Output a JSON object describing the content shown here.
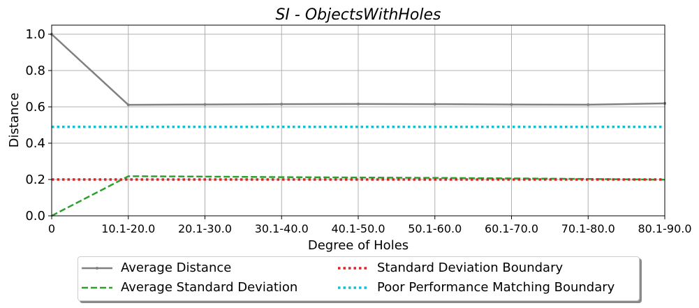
{
  "chart_data": {
    "type": "line",
    "title": "SI - ObjectsWithHoles",
    "xlabel": "Degree of Holes",
    "ylabel": "Distance",
    "categories": [
      "0",
      "10.1-20.0",
      "20.1-30.0",
      "30.1-40.0",
      "40.1-50.0",
      "50.1-60.0",
      "60.1-70.0",
      "70.1-80.0",
      "80.1-90.0"
    ],
    "ylim": [
      0,
      1.05
    ],
    "yticks": [
      "0.0",
      "0.2",
      "0.4",
      "0.6",
      "0.8",
      "1.0"
    ],
    "grid": true,
    "legend_position": "bottom-center",
    "series": [
      {
        "name": "Average Distance",
        "style": "solid-marker",
        "color": "#808080",
        "values": [
          1.0,
          0.611,
          0.613,
          0.615,
          0.616,
          0.615,
          0.613,
          0.612,
          0.619
        ]
      },
      {
        "name": "Average Standard Deviation",
        "style": "dashed",
        "color": "#2ca02c",
        "values": [
          0.0,
          0.218,
          0.216,
          0.213,
          0.211,
          0.209,
          0.206,
          0.203,
          0.199
        ]
      },
      {
        "name": "Standard Deviation Boundary",
        "style": "dotted",
        "color": "#d62728",
        "values": [
          0.2,
          0.2,
          0.2,
          0.2,
          0.2,
          0.2,
          0.2,
          0.2,
          0.2
        ]
      },
      {
        "name": "Poor Performance Matching Boundary",
        "style": "dotted",
        "color": "#17becf",
        "values": [
          0.49,
          0.49,
          0.49,
          0.49,
          0.49,
          0.49,
          0.49,
          0.49,
          0.49
        ]
      }
    ]
  }
}
